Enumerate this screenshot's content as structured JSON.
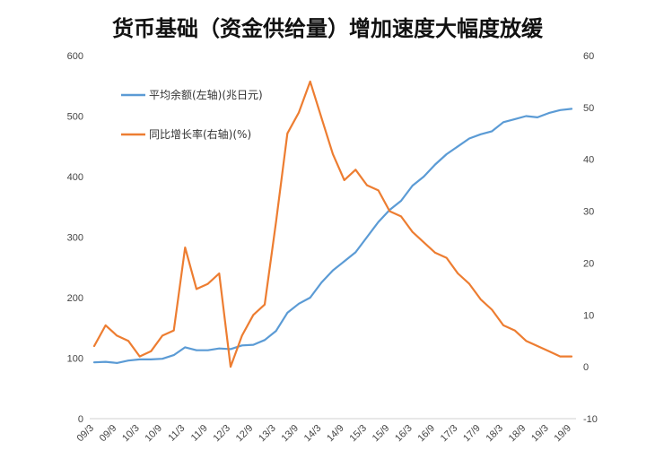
{
  "chart_data": {
    "type": "line",
    "title": "货币基础（资金供给量）增加速度大幅度放缓",
    "legend_position": "top-left",
    "grid": false,
    "x": [
      "09/3",
      "09/6",
      "09/9",
      "09/12",
      "10/3",
      "10/6",
      "10/9",
      "10/12",
      "11/3",
      "11/6",
      "11/9",
      "11/12",
      "12/3",
      "12/6",
      "12/9",
      "12/12",
      "13/3",
      "13/6",
      "13/9",
      "13/12",
      "14/3",
      "14/6",
      "14/9",
      "14/12",
      "15/3",
      "15/6",
      "15/9",
      "15/12",
      "16/3",
      "16/6",
      "16/9",
      "16/12",
      "17/3",
      "17/6",
      "17/9",
      "17/12",
      "18/3",
      "18/6",
      "18/9",
      "18/12",
      "19/3",
      "19/6",
      "19/9"
    ],
    "x_tick_labels": [
      "09/3",
      "09/9",
      "10/3",
      "10/9",
      "11/3",
      "11/9",
      "12/3",
      "12/9",
      "13/3",
      "13/9",
      "14/3",
      "14/9",
      "15/3",
      "15/9",
      "16/3",
      "16/9",
      "17/3",
      "17/9",
      "18/3",
      "18/9",
      "19/3",
      "19/9"
    ],
    "y_left": {
      "ticks": [
        "0",
        "100",
        "200",
        "300",
        "400",
        "500",
        "600"
      ],
      "ylim": [
        0,
        600
      ]
    },
    "y_right": {
      "ticks": [
        "-10",
        "0",
        "10",
        "20",
        "30",
        "40",
        "50",
        "60"
      ],
      "ylim": [
        -10,
        60
      ]
    },
    "series": [
      {
        "name": "平均余额(左轴)(兆日元)",
        "axis": "left",
        "color": "#5b9bd5",
        "values": [
          93,
          94,
          92,
          96,
          98,
          98,
          99,
          105,
          118,
          113,
          113,
          116,
          115,
          121,
          122,
          130,
          145,
          175,
          190,
          200,
          225,
          245,
          260,
          275,
          300,
          325,
          345,
          360,
          385,
          400,
          420,
          437,
          450,
          463,
          470,
          475,
          490,
          495,
          500,
          498,
          505,
          510,
          512
        ]
      },
      {
        "name": "同比增长率(右轴)(%)",
        "axis": "right",
        "color": "#ed7d31",
        "values": [
          4,
          8,
          6,
          5,
          2,
          3,
          6,
          7,
          23,
          15,
          16,
          18,
          0,
          6,
          10,
          12,
          28,
          45,
          49,
          55,
          48,
          41,
          36,
          38,
          35,
          34,
          30,
          29,
          26,
          24,
          22,
          21,
          18,
          16,
          13,
          11,
          8,
          7,
          5,
          4,
          3,
          2,
          2
        ]
      }
    ]
  }
}
